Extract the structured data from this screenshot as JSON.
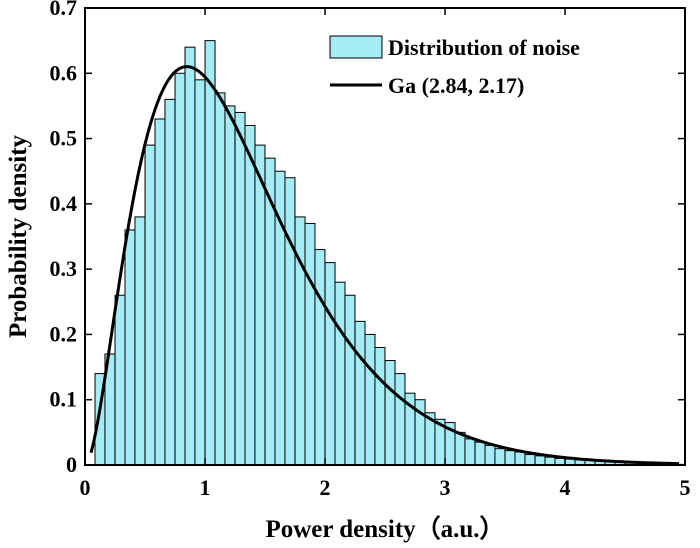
{
  "chart_data": {
    "type": "bar",
    "xlabel": "Power density（a.u.）",
    "ylabel": "Probability density",
    "xlim": [
      0,
      5
    ],
    "ylim": [
      0,
      0.7
    ],
    "xticks": [
      "0",
      "1",
      "2",
      "3",
      "4",
      "5"
    ],
    "yticks": [
      "0",
      "0.1",
      "0.2",
      "0.3",
      "0.4",
      "0.5",
      "0.6",
      "0.7"
    ],
    "bar_color": "#a6ecf6",
    "legend_position": "top-right",
    "bin_width": 0.0833,
    "histogram": {
      "name": "Distribution of noise",
      "x": [
        0.125,
        0.208,
        0.292,
        0.375,
        0.458,
        0.542,
        0.625,
        0.708,
        0.792,
        0.875,
        0.958,
        1.042,
        1.125,
        1.208,
        1.292,
        1.375,
        1.458,
        1.542,
        1.625,
        1.708,
        1.792,
        1.875,
        1.958,
        2.042,
        2.125,
        2.208,
        2.292,
        2.375,
        2.458,
        2.542,
        2.625,
        2.708,
        2.792,
        2.875,
        2.958,
        3.042,
        3.125,
        3.208,
        3.292,
        3.375,
        3.458,
        3.542,
        3.625,
        3.708,
        3.792,
        3.875,
        3.958,
        4.042,
        4.125,
        4.208,
        4.292,
        4.375,
        4.458,
        4.542,
        4.625,
        4.708,
        4.792,
        4.875,
        4.958
      ],
      "values": [
        0.14,
        0.17,
        0.26,
        0.36,
        0.38,
        0.49,
        0.53,
        0.56,
        0.6,
        0.64,
        0.59,
        0.65,
        0.57,
        0.55,
        0.54,
        0.52,
        0.49,
        0.47,
        0.45,
        0.44,
        0.38,
        0.37,
        0.33,
        0.31,
        0.28,
        0.26,
        0.22,
        0.2,
        0.18,
        0.16,
        0.14,
        0.11,
        0.1,
        0.08,
        0.07,
        0.065,
        0.05,
        0.04,
        0.035,
        0.03,
        0.025,
        0.022,
        0.02,
        0.016,
        0.014,
        0.012,
        0.01,
        0.009,
        0.008,
        0.007,
        0.006,
        0.005,
        0.004,
        0.003,
        0.003,
        0.002,
        0.002,
        0.001,
        0.001
      ]
    },
    "curve": {
      "name": "Ga (2.84, 2.17)",
      "distribution": "gamma",
      "shape": 2.84,
      "rate": 2.17,
      "color": "#000000"
    }
  }
}
